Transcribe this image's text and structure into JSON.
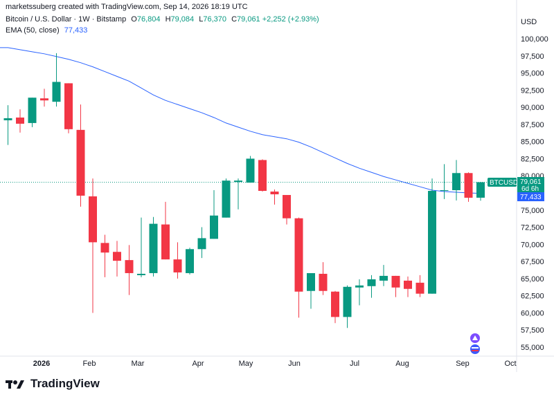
{
  "header": {
    "author": "marketssuberg",
    "created_text": "created with TradingView.com, Sep 14, 2026 18:19 UTC"
  },
  "symbol": {
    "name": "Bitcoin / U.S. Dollar · 1W · Bitstamp",
    "o_label": "O",
    "o": "76,804",
    "h_label": "H",
    "h": "79,084",
    "l_label": "L",
    "l": "76,370",
    "c_label": "C",
    "c": "79,061",
    "change": "+2,252 (+2.93%)"
  },
  "indicator": {
    "label": "EMA (50, close)",
    "value": "77,433"
  },
  "price_axis": {
    "currency": "USD",
    "labels": [
      "100,000",
      "97,500",
      "95,000",
      "92,500",
      "90,000",
      "87,500",
      "85,000",
      "82,500",
      "80,000",
      "77,500",
      "75,000",
      "72,500",
      "70,000",
      "67,500",
      "65,000",
      "62,500",
      "60,000",
      "57,500",
      "55,000"
    ]
  },
  "time_axis": {
    "labels": [
      "2026",
      "Feb",
      "Mar",
      "Apr",
      "May",
      "Jun",
      "Jul",
      "Aug",
      "Sep",
      "Oct"
    ]
  },
  "price_tags": {
    "symbol_tag": "BTCUSD",
    "last_price": "79,061",
    "countdown": "6d 6h",
    "ema_tag": "77,433"
  },
  "footer": {
    "brand": "TradingView"
  },
  "colors": {
    "up": "#089981",
    "down": "#f23645",
    "ema": "#2962ff",
    "tag_ema": "#2962ff"
  },
  "chart_data": {
    "type": "candlestick",
    "title": "Bitcoin / U.S. Dollar · 1W · Bitstamp",
    "ylim": [
      52500,
      102500
    ],
    "yticks": [
      55000,
      57500,
      60000,
      62500,
      65000,
      67500,
      70000,
      72500,
      75000,
      77500,
      80000,
      82500,
      85000,
      87500,
      90000,
      92500,
      95000,
      97500,
      100000
    ],
    "candles": [
      {
        "o": 88100,
        "h": 90300,
        "l": 84500,
        "c": 88400
      },
      {
        "o": 88500,
        "h": 89700,
        "l": 86300,
        "c": 87600
      },
      {
        "o": 87700,
        "h": 91400,
        "l": 87100,
        "c": 91400
      },
      {
        "o": 91300,
        "h": 92700,
        "l": 90100,
        "c": 91000
      },
      {
        "o": 90800,
        "h": 97900,
        "l": 90100,
        "c": 93700
      },
      {
        "o": 93500,
        "h": 93500,
        "l": 86200,
        "c": 86800
      },
      {
        "o": 86700,
        "h": 90400,
        "l": 75500,
        "c": 77100
      },
      {
        "o": 77000,
        "h": 79600,
        "l": 60000,
        "c": 70300
      },
      {
        "o": 70200,
        "h": 71400,
        "l": 65200,
        "c": 68800
      },
      {
        "o": 68900,
        "h": 70500,
        "l": 65300,
        "c": 67600
      },
      {
        "o": 67700,
        "h": 69900,
        "l": 62600,
        "c": 65800
      },
      {
        "o": 65500,
        "h": 73900,
        "l": 65200,
        "c": 65700
      },
      {
        "o": 65800,
        "h": 74000,
        "l": 65300,
        "c": 73000
      },
      {
        "o": 72900,
        "h": 76200,
        "l": 67800,
        "c": 67800
      },
      {
        "o": 67800,
        "h": 70300,
        "l": 65000,
        "c": 65900
      },
      {
        "o": 65800,
        "h": 69500,
        "l": 65600,
        "c": 69300
      },
      {
        "o": 69300,
        "h": 72500,
        "l": 68000,
        "c": 70900
      },
      {
        "o": 70800,
        "h": 77900,
        "l": 70800,
        "c": 74200
      },
      {
        "o": 73900,
        "h": 79600,
        "l": 73900,
        "c": 79300
      },
      {
        "o": 79100,
        "h": 79600,
        "l": 75100,
        "c": 79300
      },
      {
        "o": 79000,
        "h": 82900,
        "l": 79000,
        "c": 82500
      },
      {
        "o": 82300,
        "h": 82400,
        "l": 77700,
        "c": 77800
      },
      {
        "o": 77700,
        "h": 78000,
        "l": 75800,
        "c": 77300
      },
      {
        "o": 77200,
        "h": 77200,
        "l": 72900,
        "c": 73800
      },
      {
        "o": 73800,
        "h": 73900,
        "l": 59300,
        "c": 63100
      },
      {
        "o": 63200,
        "h": 65800,
        "l": 60600,
        "c": 65800
      },
      {
        "o": 65700,
        "h": 67400,
        "l": 62600,
        "c": 63200
      },
      {
        "o": 63100,
        "h": 63200,
        "l": 58500,
        "c": 59400
      },
      {
        "o": 59400,
        "h": 64000,
        "l": 57800,
        "c": 63800
      },
      {
        "o": 63700,
        "h": 64900,
        "l": 61100,
        "c": 64000
      },
      {
        "o": 63900,
        "h": 65500,
        "l": 62200,
        "c": 64900
      },
      {
        "o": 64700,
        "h": 67000,
        "l": 63900,
        "c": 65400
      },
      {
        "o": 65400,
        "h": 65400,
        "l": 62300,
        "c": 63700
      },
      {
        "o": 64700,
        "h": 65300,
        "l": 62300,
        "c": 63500
      },
      {
        "o": 64400,
        "h": 65500,
        "l": 62300,
        "c": 62800
      },
      {
        "o": 62800,
        "h": 79600,
        "l": 62800,
        "c": 77800
      },
      {
        "o": 77900,
        "h": 81700,
        "l": 76600,
        "c": 77900
      },
      {
        "o": 77900,
        "h": 82300,
        "l": 76400,
        "c": 80400
      },
      {
        "o": 80400,
        "h": 80500,
        "l": 76200,
        "c": 76800
      },
      {
        "o": 76804,
        "h": 79084,
        "l": 76370,
        "c": 79061
      }
    ],
    "ema_series": {
      "name": "EMA (50, close)",
      "values": [
        98700,
        98400,
        98100,
        97800,
        97400,
        97000,
        96500,
        95900,
        95200,
        94500,
        93800,
        92800,
        91800,
        91000,
        90400,
        89800,
        89200,
        88500,
        87700,
        87100,
        86500,
        86000,
        85700,
        85400,
        84900,
        84200,
        83400,
        82600,
        81800,
        81100,
        80500,
        79900,
        79400,
        78900,
        78400,
        77900,
        77700,
        77600,
        77500,
        77433
      ]
    }
  }
}
